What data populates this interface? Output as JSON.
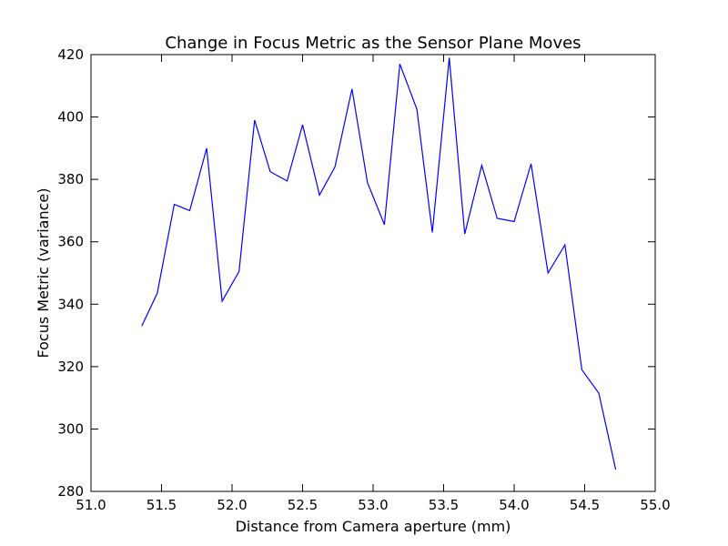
{
  "chart_data": {
    "type": "line",
    "title": "Change in Focus Metric as the Sensor Plane Moves",
    "xlabel": "Distance from Camera aperture (mm)",
    "ylabel": "Focus Metric (variance)",
    "xlim": [
      51.0,
      55.0
    ],
    "ylim": [
      280,
      420
    ],
    "xticks": [
      "51.0",
      "51.5",
      "52.0",
      "52.5",
      "53.0",
      "53.5",
      "54.0",
      "54.5",
      "55.0"
    ],
    "yticks": [
      "280",
      "300",
      "320",
      "340",
      "360",
      "380",
      "400",
      "420"
    ],
    "grid": false,
    "series": [
      {
        "color": "#0000ff",
        "x": [
          51.36,
          51.47,
          51.59,
          51.7,
          51.82,
          51.93,
          52.05,
          52.16,
          52.27,
          52.39,
          52.5,
          52.62,
          52.73,
          52.85,
          52.96,
          53.08,
          53.19,
          53.31,
          53.42,
          53.54,
          53.65,
          53.77,
          53.88,
          54.0,
          54.12,
          54.24,
          54.36,
          54.48,
          54.6,
          54.72
        ],
        "y": [
          333,
          343.5,
          372,
          370,
          390,
          341,
          350.5,
          399,
          382.5,
          379.5,
          397.5,
          375,
          384,
          409,
          379,
          365.5,
          417,
          402.5,
          363,
          419,
          362.5,
          384.5,
          367.5,
          366.5,
          385,
          350,
          359,
          319,
          311.5,
          287
        ]
      }
    ]
  }
}
